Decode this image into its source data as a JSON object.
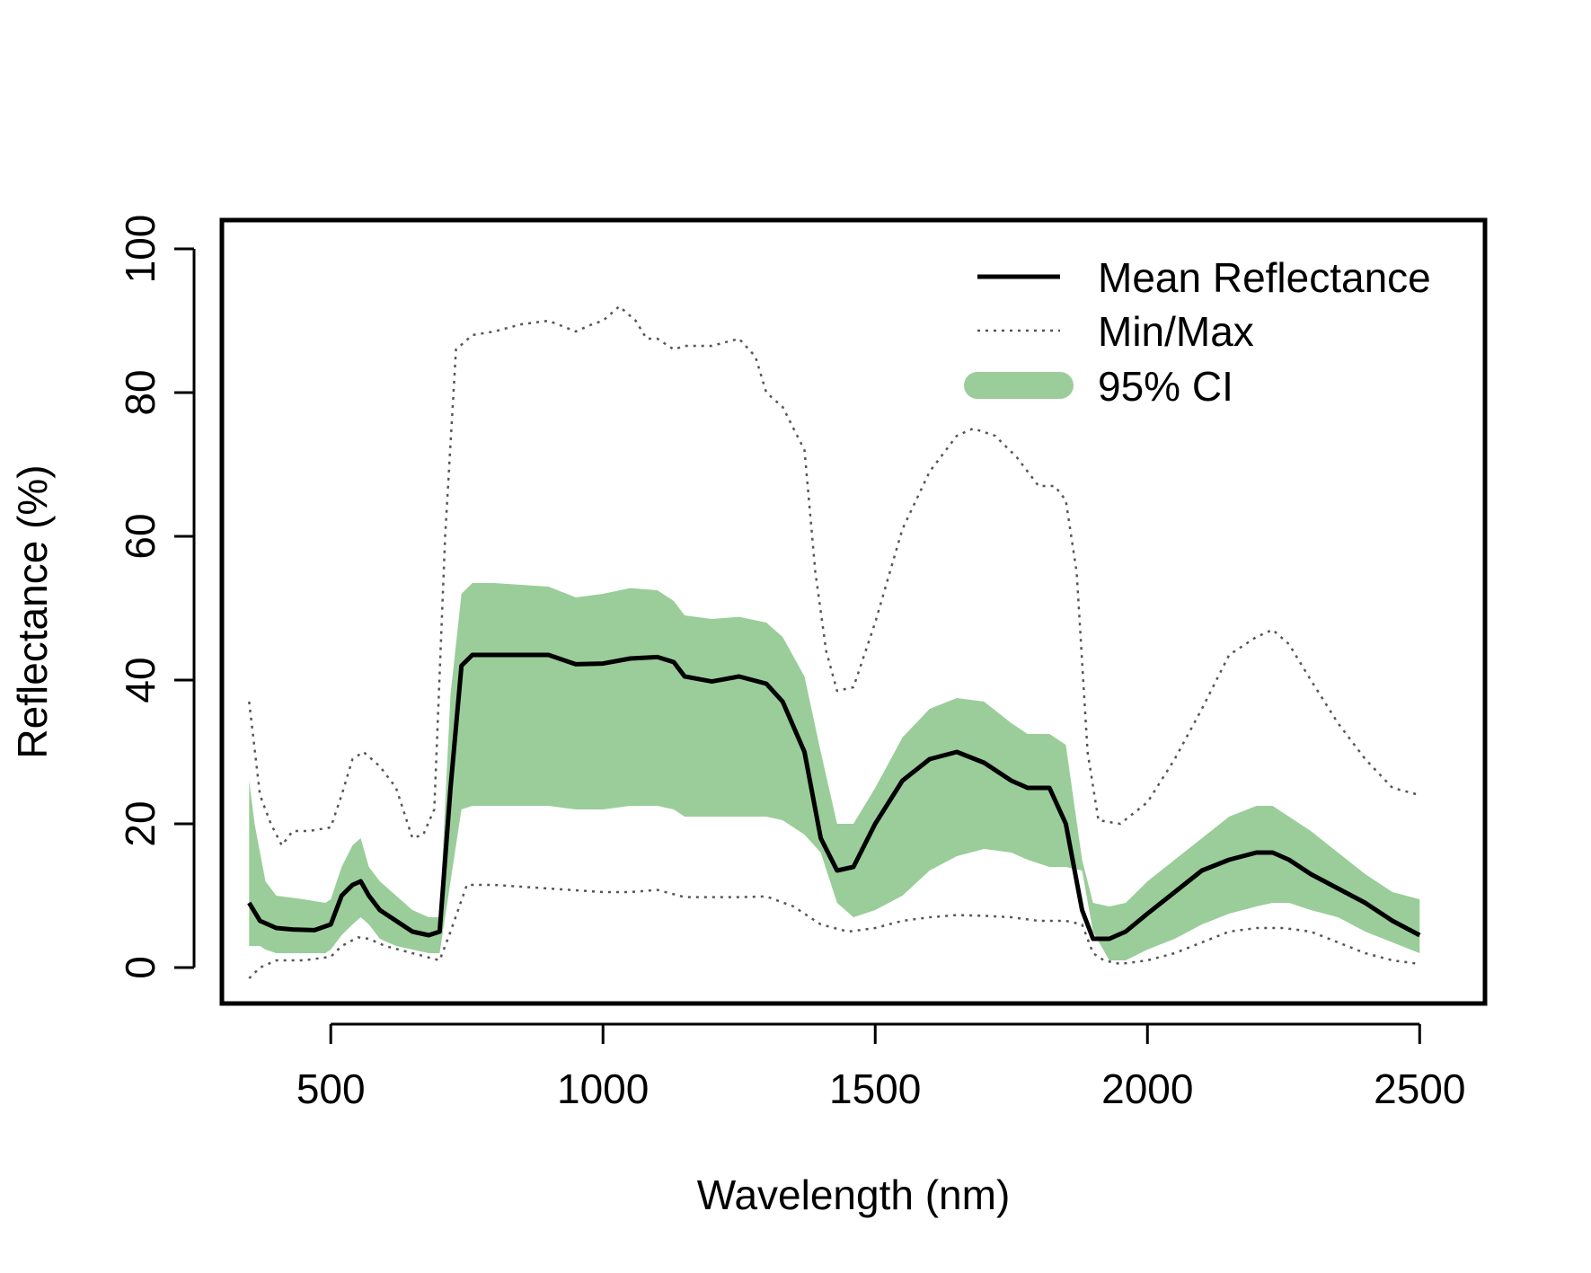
{
  "chart_data": {
    "type": "line",
    "xlabel": "Wavelength (nm)",
    "ylabel": "Reflectance (%)",
    "xlim": [
      300,
      2620
    ],
    "ylim": [
      -5,
      104
    ],
    "xticks": [
      500,
      1000,
      1500,
      2000,
      2500
    ],
    "yticks": [
      0,
      20,
      40,
      60,
      80,
      100
    ],
    "grid": false,
    "legend_position": "top-right",
    "colors": {
      "mean": "#000000",
      "minmax": "#555555",
      "ci": "#9acd9a"
    },
    "series": [
      {
        "name": "Mean Reflectance",
        "style": "solid",
        "x": [
          350,
          370,
          400,
          430,
          470,
          500,
          520,
          540,
          555,
          570,
          590,
          620,
          650,
          680,
          700,
          720,
          740,
          760,
          800,
          900,
          950,
          1000,
          1050,
          1100,
          1130,
          1150,
          1200,
          1250,
          1300,
          1330,
          1370,
          1400,
          1430,
          1460,
          1500,
          1550,
          1600,
          1650,
          1700,
          1750,
          1780,
          1820,
          1850,
          1880,
          1900,
          1930,
          1960,
          2000,
          2050,
          2100,
          2150,
          2200,
          2230,
          2260,
          2300,
          2350,
          2400,
          2450,
          2500
        ],
        "y": [
          9,
          6.5,
          5.5,
          5.3,
          5.2,
          6,
          10,
          11.5,
          12,
          10,
          8,
          6.5,
          5,
          4.5,
          5,
          25,
          42,
          43.5,
          43.5,
          43.5,
          42.2,
          42.3,
          43,
          43.2,
          42.5,
          40.5,
          39.8,
          40.5,
          39.5,
          37,
          30,
          18,
          13.5,
          14,
          20,
          26,
          29,
          30,
          28.5,
          26,
          25,
          25,
          20,
          8,
          4,
          4,
          5,
          7.5,
          10.5,
          13.5,
          15,
          16,
          16,
          15,
          13,
          11,
          9,
          6.5,
          4.5
        ]
      },
      {
        "name": "Min/Max",
        "style": "dotted",
        "x": [
          350,
          370,
          390,
          410,
          430,
          460,
          500,
          520,
          540,
          560,
          590,
          620,
          650,
          670,
          690,
          710,
          730,
          760,
          800,
          850,
          900,
          950,
          980,
          1000,
          1030,
          1060,
          1080,
          1100,
          1130,
          1150,
          1180,
          1200,
          1250,
          1280,
          1300,
          1330,
          1370,
          1390,
          1410,
          1430,
          1460,
          1500,
          1550,
          1600,
          1650,
          1680,
          1720,
          1760,
          1800,
          1830,
          1850,
          1870,
          1890,
          1910,
          1950,
          2000,
          2050,
          2100,
          2150,
          2200,
          2230,
          2260,
          2300,
          2350,
          2400,
          2450,
          2500
        ],
        "y": [
          37,
          24,
          20,
          17,
          19,
          19,
          19.5,
          24,
          29,
          30,
          28,
          25,
          18,
          18.5,
          22,
          60,
          86,
          88,
          88.5,
          89.5,
          90,
          88.5,
          89.5,
          90,
          92,
          90,
          87.5,
          87.5,
          86,
          86.5,
          86.5,
          86.5,
          87.5,
          85,
          80,
          78,
          72,
          55,
          44,
          38.5,
          39,
          48,
          61,
          69,
          74,
          75,
          74,
          71,
          67,
          67,
          65,
          55,
          30,
          20.5,
          20,
          23,
          29,
          36,
          43.5,
          46,
          47,
          45,
          40,
          34,
          29,
          25,
          24
        ]
      },
      {
        "name": "Min/Max",
        "style": "dotted",
        "x": [
          350,
          370,
          400,
          450,
          500,
          520,
          550,
          570,
          600,
          650,
          700,
          720,
          750,
          800,
          900,
          1000,
          1050,
          1100,
          1150,
          1200,
          1250,
          1300,
          1350,
          1400,
          1450,
          1500,
          1550,
          1600,
          1650,
          1700,
          1750,
          1800,
          1850,
          1880,
          1900,
          1920,
          1950,
          2000,
          2050,
          2100,
          2150,
          2200,
          2250,
          2300,
          2350,
          2400,
          2450,
          2500
        ],
        "y": [
          -1.5,
          0,
          1,
          1,
          1.5,
          3,
          4.2,
          4,
          3,
          2,
          1,
          5,
          11.5,
          11.5,
          11,
          10.5,
          10.5,
          10.8,
          9.8,
          9.8,
          9.8,
          9.9,
          8.5,
          6,
          5,
          5.5,
          6.5,
          7,
          7.3,
          7.2,
          7,
          6.5,
          6.5,
          6,
          2,
          1,
          0.5,
          1,
          2,
          3.5,
          5,
          5.5,
          5.5,
          5,
          3.5,
          2,
          1,
          0.5
        ]
      }
    ],
    "band": {
      "name": "95% CI",
      "x": [
        350,
        360,
        370,
        380,
        400,
        450,
        490,
        500,
        520,
        540,
        555,
        570,
        590,
        620,
        650,
        680,
        700,
        720,
        740,
        760,
        800,
        900,
        950,
        1000,
        1050,
        1100,
        1130,
        1150,
        1200,
        1250,
        1300,
        1330,
        1370,
        1400,
        1430,
        1460,
        1500,
        1550,
        1600,
        1650,
        1700,
        1750,
        1780,
        1820,
        1850,
        1880,
        1900,
        1930,
        1960,
        2000,
        2050,
        2100,
        2150,
        2200,
        2230,
        2260,
        2300,
        2350,
        2400,
        2450,
        2500
      ],
      "upper": [
        26,
        20,
        16,
        12,
        10,
        9.5,
        9,
        9.5,
        14,
        17,
        18,
        14,
        12,
        10,
        8,
        7,
        7,
        38,
        52,
        53.5,
        53.5,
        53,
        51.5,
        52,
        52.8,
        52.5,
        51,
        49,
        48.5,
        48.8,
        48,
        46,
        40.5,
        30,
        20,
        20,
        25,
        32,
        36,
        37.5,
        37,
        34,
        32.5,
        32.5,
        31,
        15,
        9,
        8.5,
        9,
        12,
        15,
        18,
        21,
        22.5,
        22.5,
        21,
        19,
        16,
        13,
        10.5,
        9.5
      ],
      "lower": [
        3,
        3,
        3,
        2.5,
        2,
        2,
        2,
        2.5,
        4.5,
        6,
        7,
        6,
        4,
        3,
        2.5,
        2,
        2,
        12,
        22,
        22.5,
        22.5,
        22.5,
        22,
        22,
        22.5,
        22.5,
        22,
        21,
        21,
        21,
        21,
        20.5,
        18.5,
        16,
        9,
        7,
        8,
        10,
        13.5,
        15.5,
        16.5,
        16,
        15,
        14,
        14,
        13.5,
        5,
        1,
        1,
        2.5,
        4,
        6,
        7.5,
        8.5,
        9,
        9,
        8,
        7,
        5,
        3.5,
        2
      ]
    }
  }
}
